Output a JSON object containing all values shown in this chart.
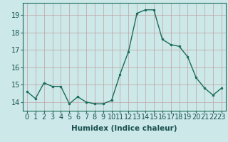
{
  "x": [
    0,
    1,
    2,
    3,
    4,
    5,
    6,
    7,
    8,
    9,
    10,
    11,
    12,
    13,
    14,
    15,
    16,
    17,
    18,
    19,
    20,
    21,
    22,
    23
  ],
  "y": [
    14.6,
    14.2,
    15.1,
    14.9,
    14.9,
    13.9,
    14.3,
    14.0,
    13.9,
    13.9,
    14.1,
    15.6,
    16.9,
    19.1,
    19.3,
    19.3,
    17.6,
    17.3,
    17.2,
    16.6,
    15.4,
    14.8,
    14.4,
    14.8
  ],
  "line_color": "#1a6b5a",
  "marker": "o",
  "marker_size": 2.0,
  "bg_color": "#cce8e8",
  "grid_color": "#c0a0a0",
  "xlabel": "Humidex (Indice chaleur)",
  "xlabel_fontsize": 7.5,
  "tick_fontsize": 7,
  "ylim": [
    13.5,
    19.7
  ],
  "xlim": [
    -0.5,
    23.5
  ],
  "yticks": [
    14,
    15,
    16,
    17,
    18,
    19
  ],
  "xticks": [
    0,
    1,
    2,
    3,
    4,
    5,
    6,
    7,
    8,
    9,
    10,
    11,
    12,
    13,
    14,
    15,
    16,
    17,
    18,
    19,
    20,
    21,
    22,
    23
  ],
  "xtick_labels": [
    "0",
    "1",
    "2",
    "3",
    "4",
    "5",
    "6",
    "7",
    "8",
    "9",
    "10",
    "11",
    "12",
    "13",
    "14",
    "15",
    "16",
    "17",
    "18",
    "19",
    "20",
    "21",
    "22",
    "23"
  ]
}
